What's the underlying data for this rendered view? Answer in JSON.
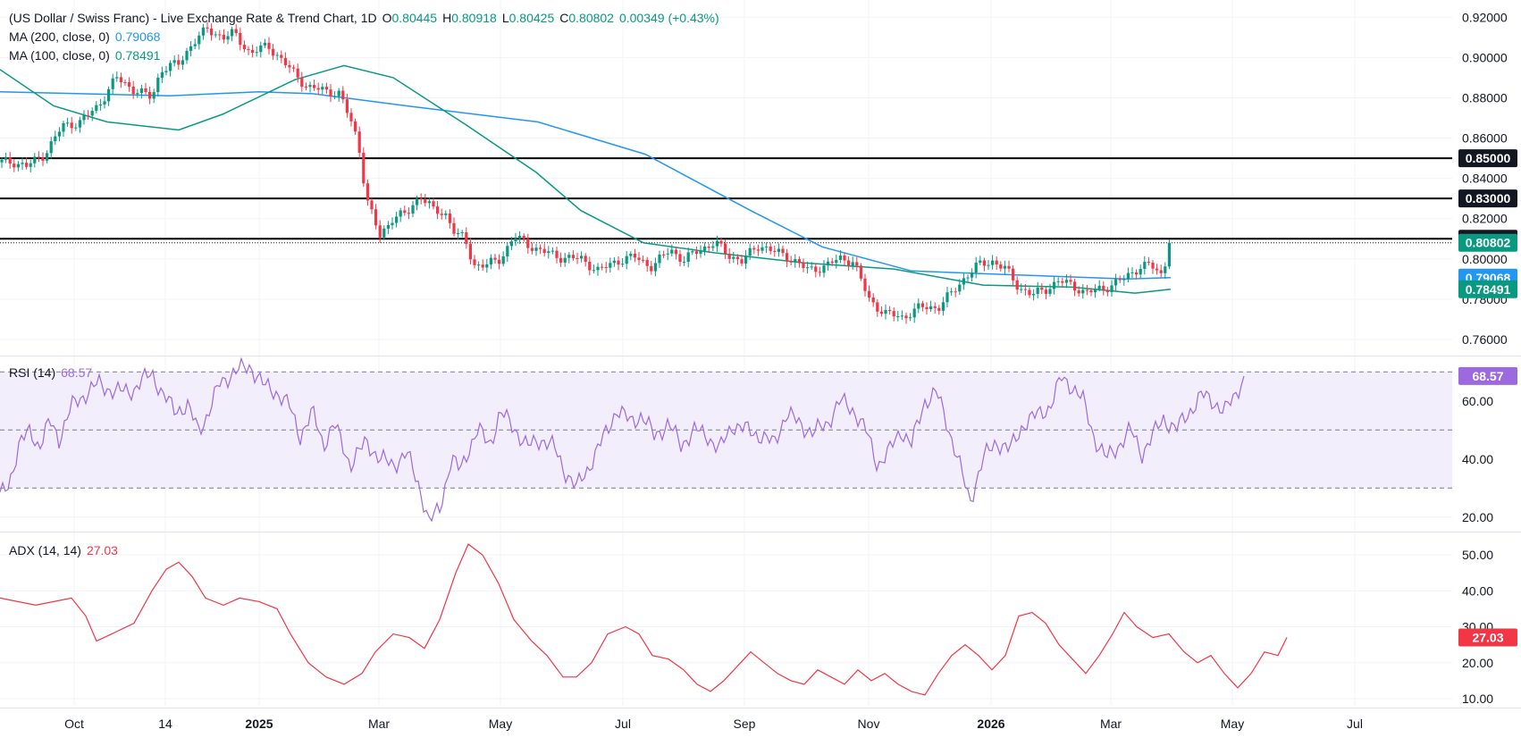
{
  "header": {
    "title": "(US Dollar / Swiss Franc) - Live Exchange Rate & Trend Chart, 1D",
    "open_label": "O",
    "open": "0.80445",
    "high_label": "H",
    "high": "0.80918",
    "low_label": "L",
    "low": "0.80425",
    "close_label": "C",
    "close": "0.80802",
    "change": "0.00349 (+0.43%)",
    "ma200_label": "MA (200, close, 0)",
    "ma200": "0.79068",
    "ma100_label": "MA (100, close, 0)",
    "ma100": "0.78491",
    "rsi_label": "RSI (14)",
    "rsi": "68.57",
    "adx_label": "ADX (14, 14)",
    "adx": "27.03"
  },
  "colors": {
    "up": "#089981",
    "down": "#f23645",
    "ma200": "#2196f3",
    "ma100": "#089981",
    "rsi": "#9c6ade",
    "rsi_band": "#f3eefb",
    "adx": "#f23645",
    "axis_text": "#131722",
    "grid": "#f0f3fa"
  },
  "chart_data": [
    {
      "type": "candlestick",
      "name": "price",
      "x_ticks": [
        "Oct",
        "14",
        "2025",
        "Mar",
        "May",
        "Jul",
        "Sep",
        "Nov",
        "2026",
        "Mar",
        "May",
        "Jul"
      ],
      "y_ticks": [
        "0.92000",
        "0.90000",
        "0.88000",
        "0.86000",
        "0.84000",
        "0.82000",
        "0.80000",
        "0.78000",
        "0.76000"
      ],
      "ylim": [
        0.752,
        0.925
      ],
      "horizontal_levels": [
        {
          "value": 0.85,
          "label": "0.85000"
        },
        {
          "value": 0.83,
          "label": "0.83000"
        },
        {
          "value": 0.81,
          "label": "0.81000"
        }
      ],
      "price_labels": [
        {
          "value": 0.80802,
          "label": "0.80802",
          "kind": "last"
        },
        {
          "value": 0.79068,
          "label": "0.79068",
          "kind": "ma200"
        },
        {
          "value": 0.78491,
          "label": "0.78491",
          "kind": "ma100"
        }
      ],
      "close_series": [
        [
          0,
          0.848
        ],
        [
          16,
          0.848
        ],
        [
          30,
          0.846
        ],
        [
          50,
          0.852
        ],
        [
          70,
          0.866
        ],
        [
          90,
          0.868
        ],
        [
          110,
          0.876
        ],
        [
          130,
          0.89
        ],
        [
          150,
          0.884
        ],
        [
          170,
          0.88
        ],
        [
          180,
          0.894
        ],
        [
          200,
          0.897
        ],
        [
          215,
          0.907
        ],
        [
          232,
          0.914
        ],
        [
          250,
          0.91
        ],
        [
          262,
          0.912
        ],
        [
          280,
          0.902
        ],
        [
          300,
          0.906
        ],
        [
          325,
          0.894
        ],
        [
          345,
          0.885
        ],
        [
          360,
          0.884
        ],
        [
          380,
          0.882
        ],
        [
          392,
          0.869
        ],
        [
          401,
          0.858
        ],
        [
          410,
          0.83
        ],
        [
          425,
          0.811
        ],
        [
          440,
          0.821
        ],
        [
          455,
          0.822
        ],
        [
          470,
          0.832
        ],
        [
          485,
          0.824
        ],
        [
          500,
          0.822
        ],
        [
          510,
          0.812
        ],
        [
          520,
          0.81
        ],
        [
          530,
          0.797
        ],
        [
          545,
          0.797
        ],
        [
          560,
          0.8
        ],
        [
          575,
          0.811
        ],
        [
          600,
          0.805
        ],
        [
          625,
          0.801
        ],
        [
          650,
          0.8
        ],
        [
          670,
          0.794
        ],
        [
          690,
          0.799
        ],
        [
          710,
          0.801
        ],
        [
          730,
          0.796
        ],
        [
          750,
          0.805
        ],
        [
          765,
          0.799
        ],
        [
          780,
          0.804
        ],
        [
          800,
          0.808
        ],
        [
          815,
          0.802
        ],
        [
          830,
          0.799
        ],
        [
          850,
          0.807
        ],
        [
          870,
          0.803
        ],
        [
          890,
          0.799
        ],
        [
          905,
          0.794
        ],
        [
          920,
          0.796
        ],
        [
          940,
          0.8
        ],
        [
          955,
          0.799
        ],
        [
          972,
          0.78
        ],
        [
          990,
          0.773
        ],
        [
          1010,
          0.771
        ],
        [
          1030,
          0.776
        ],
        [
          1050,
          0.776
        ],
        [
          1065,
          0.783
        ],
        [
          1080,
          0.791
        ],
        [
          1095,
          0.797
        ],
        [
          1110,
          0.799
        ],
        [
          1125,
          0.795
        ],
        [
          1140,
          0.786
        ],
        [
          1155,
          0.782
        ],
        [
          1170,
          0.785
        ],
        [
          1185,
          0.789
        ],
        [
          1200,
          0.787
        ],
        [
          1215,
          0.783
        ],
        [
          1230,
          0.785
        ],
        [
          1245,
          0.787
        ],
        [
          1260,
          0.791
        ],
        [
          1275,
          0.796
        ],
        [
          1287,
          0.797
        ],
        [
          1300,
          0.792
        ],
        [
          1310,
          0.80802
        ]
      ],
      "ma200_series": [
        [
          0,
          0.883
        ],
        [
          190,
          0.881
        ],
        [
          290,
          0.883
        ],
        [
          350,
          0.882
        ],
        [
          455,
          0.876
        ],
        [
          602,
          0.868
        ],
        [
          722,
          0.852
        ],
        [
          840,
          0.824
        ],
        [
          920,
          0.806
        ],
        [
          1020,
          0.794
        ],
        [
          1260,
          0.79
        ],
        [
          1310,
          0.79068
        ]
      ],
      "ma100_series": [
        [
          0,
          0.894
        ],
        [
          60,
          0.876
        ],
        [
          120,
          0.868
        ],
        [
          200,
          0.864
        ],
        [
          250,
          0.872
        ],
        [
          330,
          0.889
        ],
        [
          385,
          0.896
        ],
        [
          440,
          0.89
        ],
        [
          520,
          0.867
        ],
        [
          600,
          0.843
        ],
        [
          650,
          0.824
        ],
        [
          720,
          0.808
        ],
        [
          800,
          0.803
        ],
        [
          900,
          0.798
        ],
        [
          1000,
          0.795
        ],
        [
          1100,
          0.787
        ],
        [
          1200,
          0.786
        ],
        [
          1270,
          0.783
        ],
        [
          1310,
          0.78491
        ]
      ],
      "last_price": 0.80802
    },
    {
      "type": "line",
      "name": "RSI (14)",
      "y_ticks": [
        "60.00",
        "40.00",
        "20.00"
      ],
      "ylim": [
        15,
        75
      ],
      "band": [
        30,
        70
      ],
      "midline": 50,
      "last_value": 68.57,
      "series": [
        [
          0,
          27
        ],
        [
          10,
          32
        ],
        [
          22,
          45
        ],
        [
          34,
          50
        ],
        [
          44,
          44
        ],
        [
          56,
          53
        ],
        [
          66,
          47
        ],
        [
          80,
          58
        ],
        [
          94,
          62
        ],
        [
          110,
          66
        ],
        [
          130,
          63
        ],
        [
          150,
          64
        ],
        [
          170,
          70
        ],
        [
          182,
          62
        ],
        [
          195,
          57
        ],
        [
          210,
          58
        ],
        [
          222,
          50
        ],
        [
          232,
          55
        ],
        [
          246,
          66
        ],
        [
          262,
          70
        ],
        [
          280,
          72
        ],
        [
          296,
          65
        ],
        [
          310,
          63
        ],
        [
          324,
          58
        ],
        [
          336,
          48
        ],
        [
          350,
          56
        ],
        [
          362,
          45
        ],
        [
          374,
          52
        ],
        [
          392,
          38
        ],
        [
          410,
          46
        ],
        [
          425,
          40
        ],
        [
          440,
          38
        ],
        [
          455,
          42
        ],
        [
          470,
          30
        ],
        [
          480,
          18
        ],
        [
          492,
          23
        ],
        [
          505,
          40
        ],
        [
          515,
          36
        ],
        [
          525,
          44
        ],
        [
          535,
          50
        ],
        [
          548,
          45
        ],
        [
          560,
          56
        ],
        [
          575,
          51
        ],
        [
          590,
          44
        ],
        [
          605,
          47
        ],
        [
          620,
          44
        ],
        [
          632,
          36
        ],
        [
          645,
          30
        ],
        [
          660,
          38
        ],
        [
          675,
          47
        ],
        [
          690,
          57
        ],
        [
          705,
          53
        ],
        [
          718,
          55
        ],
        [
          732,
          48
        ],
        [
          748,
          52
        ],
        [
          762,
          45
        ],
        [
          778,
          50
        ],
        [
          792,
          48
        ],
        [
          805,
          43
        ],
        [
          820,
          52
        ],
        [
          835,
          50
        ],
        [
          852,
          48
        ],
        [
          866,
          45
        ],
        [
          880,
          56
        ],
        [
          895,
          52
        ],
        [
          910,
          49
        ],
        [
          925,
          52
        ],
        [
          940,
          60
        ],
        [
          955,
          57
        ],
        [
          970,
          49
        ],
        [
          982,
          38
        ],
        [
          994,
          42
        ],
        [
          1008,
          50
        ],
        [
          1020,
          45
        ],
        [
          1035,
          60
        ],
        [
          1048,
          63
        ],
        [
          1060,
          52
        ],
        [
          1072,
          40
        ],
        [
          1085,
          25
        ],
        [
          1100,
          40
        ],
        [
          1115,
          46
        ],
        [
          1130,
          43
        ],
        [
          1145,
          52
        ],
        [
          1160,
          55
        ],
        [
          1175,
          58
        ],
        [
          1188,
          68
        ],
        [
          1200,
          65
        ],
        [
          1212,
          60
        ],
        [
          1225,
          47
        ],
        [
          1238,
          40
        ],
        [
          1250,
          44
        ],
        [
          1265,
          50
        ],
        [
          1278,
          42
        ],
        [
          1290,
          48
        ],
        [
          1302,
          54
        ],
        [
          1316,
          50
        ],
        [
          1330,
          56
        ],
        [
          1345,
          62
        ],
        [
          1358,
          60
        ],
        [
          1370,
          56
        ],
        [
          1382,
          62
        ],
        [
          1392,
          68.57
        ]
      ]
    },
    {
      "type": "line",
      "name": "ADX (14, 14)",
      "y_ticks": [
        "50.00",
        "40.00",
        "30.00",
        "20.00",
        "10.00"
      ],
      "ylim": [
        8,
        56
      ],
      "last_value": 27.03,
      "series": [
        [
          0,
          38
        ],
        [
          20,
          37
        ],
        [
          40,
          36
        ],
        [
          60,
          37
        ],
        [
          80,
          38
        ],
        [
          96,
          33
        ],
        [
          108,
          26
        ],
        [
          125,
          28
        ],
        [
          150,
          31
        ],
        [
          170,
          40
        ],
        [
          186,
          46
        ],
        [
          200,
          48
        ],
        [
          215,
          44
        ],
        [
          230,
          38
        ],
        [
          250,
          36
        ],
        [
          268,
          38
        ],
        [
          290,
          37
        ],
        [
          310,
          35
        ],
        [
          325,
          28
        ],
        [
          345,
          20
        ],
        [
          365,
          16
        ],
        [
          385,
          14
        ],
        [
          405,
          17
        ],
        [
          420,
          23
        ],
        [
          440,
          28
        ],
        [
          458,
          27
        ],
        [
          475,
          24
        ],
        [
          492,
          32
        ],
        [
          510,
          45
        ],
        [
          524,
          53
        ],
        [
          540,
          50
        ],
        [
          558,
          42
        ],
        [
          575,
          32
        ],
        [
          595,
          26
        ],
        [
          612,
          22
        ],
        [
          630,
          16
        ],
        [
          645,
          16
        ],
        [
          662,
          20
        ],
        [
          680,
          28
        ],
        [
          700,
          30
        ],
        [
          715,
          28
        ],
        [
          730,
          22
        ],
        [
          748,
          21
        ],
        [
          765,
          18
        ],
        [
          780,
          14
        ],
        [
          795,
          12
        ],
        [
          810,
          15
        ],
        [
          825,
          19
        ],
        [
          840,
          23
        ],
        [
          855,
          20
        ],
        [
          870,
          17
        ],
        [
          885,
          15
        ],
        [
          900,
          14
        ],
        [
          915,
          18
        ],
        [
          930,
          16
        ],
        [
          945,
          14
        ],
        [
          960,
          18
        ],
        [
          975,
          15
        ],
        [
          990,
          17
        ],
        [
          1005,
          14
        ],
        [
          1020,
          12
        ],
        [
          1035,
          11
        ],
        [
          1050,
          17
        ],
        [
          1065,
          22
        ],
        [
          1080,
          25
        ],
        [
          1095,
          22
        ],
        [
          1110,
          18
        ],
        [
          1125,
          22
        ],
        [
          1140,
          33
        ],
        [
          1155,
          34
        ],
        [
          1170,
          31
        ],
        [
          1185,
          25
        ],
        [
          1200,
          21
        ],
        [
          1215,
          17
        ],
        [
          1230,
          22
        ],
        [
          1245,
          28
        ],
        [
          1258,
          34
        ],
        [
          1272,
          30
        ],
        [
          1290,
          27
        ],
        [
          1308,
          28
        ],
        [
          1325,
          23
        ],
        [
          1340,
          20
        ],
        [
          1355,
          22
        ],
        [
          1370,
          17
        ],
        [
          1385,
          13
        ],
        [
          1400,
          17
        ],
        [
          1415,
          23
        ],
        [
          1430,
          22
        ],
        [
          1440,
          27.03
        ]
      ]
    }
  ]
}
